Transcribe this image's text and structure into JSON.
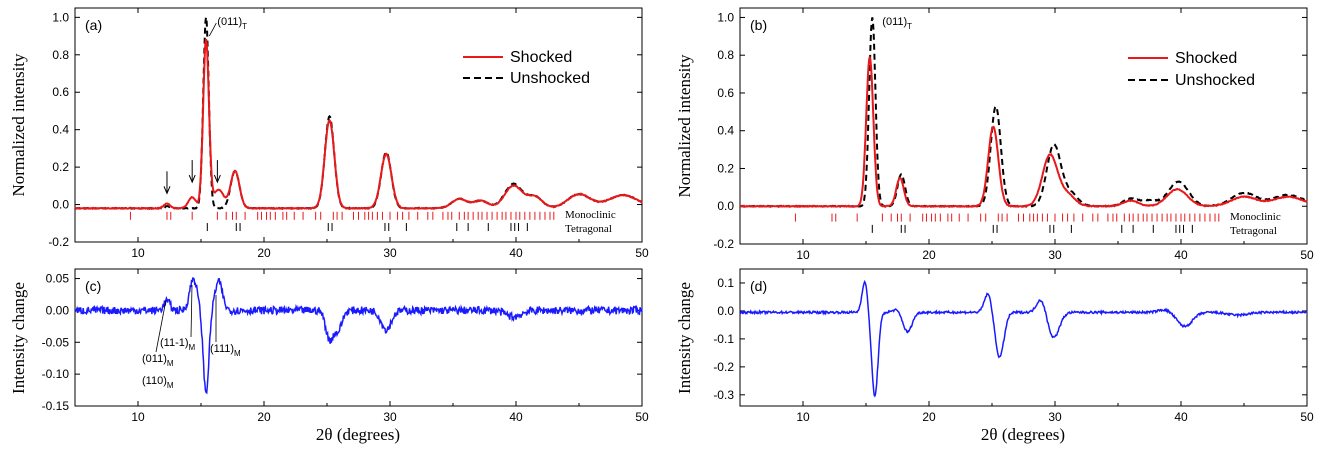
{
  "colors": {
    "shocked": "#e8191b",
    "unshocked": "#000000",
    "change": "#1a1aff",
    "mono_ticks": "#e8191b",
    "tet_ticks": "#000000"
  },
  "chart_data": [
    {
      "id": "a",
      "type": "line",
      "panel_label": "(a)",
      "xlabel": "",
      "ylabel": "Normalized intensity",
      "xlim": [
        5,
        50
      ],
      "ylim": [
        -0.2,
        1.05
      ],
      "x_ticks": [
        10,
        20,
        30,
        40,
        50
      ],
      "y_ticks": [
        -0.2,
        0.0,
        0.2,
        0.4,
        0.6,
        0.8,
        1.0
      ],
      "y_tick_labels": [
        "-0.2",
        "0.0",
        "0.2",
        "0.4",
        "0.6",
        "0.8",
        "1.0"
      ],
      "legend": {
        "position": "top-right",
        "entries": [
          "Shocked",
          "Unshocked"
        ]
      },
      "phase_labels": {
        "monoclinic": "Monoclinic",
        "tetragonal": "Tetragonal"
      },
      "annotations": [
        {
          "text": "(011)",
          "sub": "T",
          "x": 15.5,
          "y": 0.98
        }
      ],
      "arrows_x": [
        12.3,
        14.3,
        16.3
      ],
      "baseline_offset": -0.02,
      "series": [
        {
          "name": "Shocked",
          "style": "solid",
          "peaks": [
            [
              12.3,
              0.025,
              0.25
            ],
            [
              14.3,
              0.06,
              0.3
            ],
            [
              15.4,
              0.9,
              0.23
            ],
            [
              16.4,
              0.1,
              0.4
            ],
            [
              17.7,
              0.2,
              0.35
            ],
            [
              25.2,
              0.47,
              0.38
            ],
            [
              29.7,
              0.29,
              0.42
            ],
            [
              35.5,
              0.05,
              0.6
            ],
            [
              37.2,
              0.04,
              0.6
            ],
            [
              39.8,
              0.12,
              0.7
            ],
            [
              41.5,
              0.06,
              0.6
            ],
            [
              45.0,
              0.075,
              0.9
            ],
            [
              48.5,
              0.07,
              1.2
            ]
          ]
        },
        {
          "name": "Unshocked",
          "style": "dashed",
          "peaks": [
            [
              12.3,
              0.01,
              0.25
            ],
            [
              15.4,
              1.02,
              0.22
            ],
            [
              17.7,
              0.2,
              0.35
            ],
            [
              25.2,
              0.49,
              0.37
            ],
            [
              29.7,
              0.3,
              0.4
            ],
            [
              35.5,
              0.05,
              0.6
            ],
            [
              37.2,
              0.04,
              0.6
            ],
            [
              39.8,
              0.13,
              0.7
            ],
            [
              41.5,
              0.06,
              0.6
            ],
            [
              45.0,
              0.075,
              0.9
            ],
            [
              48.5,
              0.07,
              1.2
            ]
          ]
        }
      ]
    },
    {
      "id": "b",
      "type": "line",
      "panel_label": "(b)",
      "xlabel": "",
      "ylabel": "Normalized intensity",
      "xlim": [
        5,
        50
      ],
      "ylim": [
        -0.2,
        1.05
      ],
      "x_ticks": [
        10,
        20,
        30,
        40,
        50
      ],
      "y_ticks": [
        -0.2,
        0.0,
        0.2,
        0.4,
        0.6,
        0.8,
        1.0
      ],
      "y_tick_labels": [
        "-0.2",
        "0.0",
        "0.2",
        "0.4",
        "0.6",
        "0.8",
        "1.0"
      ],
      "legend": {
        "position": "top-right",
        "entries": [
          "Shocked",
          "Unshocked"
        ]
      },
      "phase_labels": {
        "monoclinic": "Monoclinic",
        "tetragonal": "Tetragonal"
      },
      "annotations": [
        {
          "text": "(011)",
          "sub": "T",
          "x": 15.5,
          "y": 0.98
        }
      ],
      "arrows_x": [],
      "baseline_offset": 0.0,
      "series": [
        {
          "name": "Shocked",
          "style": "solid",
          "peaks": [
            [
              15.3,
              0.79,
              0.28
            ],
            [
              17.7,
              0.15,
              0.3
            ],
            [
              25.1,
              0.42,
              0.4
            ],
            [
              29.6,
              0.27,
              0.6
            ],
            [
              31.0,
              0.06,
              0.6
            ],
            [
              36.0,
              0.03,
              0.6
            ],
            [
              39.7,
              0.09,
              0.8
            ],
            [
              45.0,
              0.05,
              1.0
            ],
            [
              48.5,
              0.05,
              1.2
            ]
          ]
        },
        {
          "name": "Unshocked",
          "style": "dashed",
          "peaks": [
            [
              15.5,
              1.0,
              0.25
            ],
            [
              17.8,
              0.17,
              0.3
            ],
            [
              25.3,
              0.53,
              0.4
            ],
            [
              29.9,
              0.32,
              0.55
            ],
            [
              31.2,
              0.07,
              0.6
            ],
            [
              36.0,
              0.04,
              0.6
            ],
            [
              37.5,
              0.03,
              0.6
            ],
            [
              39.8,
              0.13,
              0.8
            ],
            [
              45.0,
              0.07,
              1.0
            ],
            [
              48.5,
              0.06,
              1.2
            ]
          ]
        }
      ]
    },
    {
      "id": "c",
      "type": "line",
      "panel_label": "(c)",
      "xlabel": "2θ (degrees)",
      "ylabel": "Intensity change",
      "xlim": [
        5,
        50
      ],
      "ylim": [
        -0.15,
        0.065
      ],
      "x_ticks": [
        10,
        20,
        30,
        40,
        50
      ],
      "y_ticks": [
        -0.15,
        -0.1,
        -0.05,
        0.0,
        0.05
      ],
      "y_tick_labels": [
        "-0.15",
        "-0.10",
        "-0.05",
        "0.00",
        "0.05"
      ],
      "annotations": [
        {
          "text": "(011)",
          "sub": "M",
          "x": 12.3
        },
        {
          "text": "(110)",
          "sub": "M",
          "x": 12.3
        },
        {
          "text": "(11-1)",
          "sub": "M",
          "x": 14.3
        },
        {
          "text": "(111)",
          "sub": "M",
          "x": 16.3
        }
      ],
      "series": [
        {
          "name": "",
          "style": "solid",
          "noise": 0.006,
          "baseline": 0.0,
          "peaks": [
            [
              12.3,
              0.015,
              0.25
            ],
            [
              14.4,
              0.05,
              0.3
            ],
            [
              15.4,
              -0.13,
              0.22
            ],
            [
              16.4,
              0.045,
              0.3
            ],
            [
              25.2,
              -0.045,
              0.3
            ],
            [
              25.9,
              -0.03,
              0.3
            ],
            [
              29.7,
              -0.03,
              0.4
            ],
            [
              39.8,
              -0.01,
              0.6
            ]
          ]
        }
      ]
    },
    {
      "id": "d",
      "type": "line",
      "panel_label": "(d)",
      "xlabel": "2θ (degrees)",
      "ylabel": "Intensity change",
      "xlim": [
        5,
        50
      ],
      "ylim": [
        -0.34,
        0.15
      ],
      "x_ticks": [
        10,
        20,
        30,
        40,
        50
      ],
      "y_ticks": [
        -0.3,
        -0.2,
        -0.1,
        0.0,
        0.1
      ],
      "y_tick_labels": [
        "-0.3",
        "-0.2",
        "-0.1",
        "0.0",
        "0.1"
      ],
      "annotations": [],
      "series": [
        {
          "name": "",
          "style": "solid",
          "noise": 0.004,
          "baseline": -0.005,
          "peaks": [
            [
              14.9,
              0.11,
              0.22
            ],
            [
              15.7,
              -0.3,
              0.25
            ],
            [
              17.4,
              0.01,
              0.3
            ],
            [
              18.3,
              -0.07,
              0.35
            ],
            [
              24.7,
              0.07,
              0.3
            ],
            [
              25.6,
              -0.16,
              0.35
            ],
            [
              28.9,
              0.05,
              0.35
            ],
            [
              29.9,
              -0.09,
              0.45
            ],
            [
              38.7,
              0.01,
              0.5
            ],
            [
              40.3,
              -0.05,
              0.6
            ],
            [
              44.5,
              -0.01,
              0.8
            ]
          ]
        }
      ]
    }
  ],
  "monoclinic_positions": [
    9.4,
    12.3,
    12.6,
    14.3,
    16.3,
    17.0,
    17.5,
    17.8,
    18.5,
    19.5,
    19.8,
    20.2,
    20.5,
    20.9,
    21.5,
    21.8,
    22.4,
    23.1,
    24.1,
    24.5,
    25.5,
    25.8,
    26.2,
    27.1,
    27.5,
    28.0,
    28.3,
    28.6,
    29.0,
    29.4,
    30.0,
    30.6,
    31.0,
    31.5,
    32.2,
    33.0,
    33.4,
    34.2,
    34.6,
    34.9,
    35.5,
    35.9,
    36.2,
    36.6,
    37.0,
    37.3,
    37.7,
    38.1,
    38.5,
    38.9,
    39.2,
    39.6,
    40.0,
    40.3,
    40.7,
    41.1,
    41.5,
    41.9,
    42.3,
    42.7,
    43.0
  ],
  "tetragonal_positions": [
    15.5,
    17.8,
    18.1,
    25.1,
    25.4,
    29.6,
    29.9,
    31.3,
    35.3,
    36.2,
    37.8,
    39.6,
    39.9,
    40.2,
    40.9
  ]
}
